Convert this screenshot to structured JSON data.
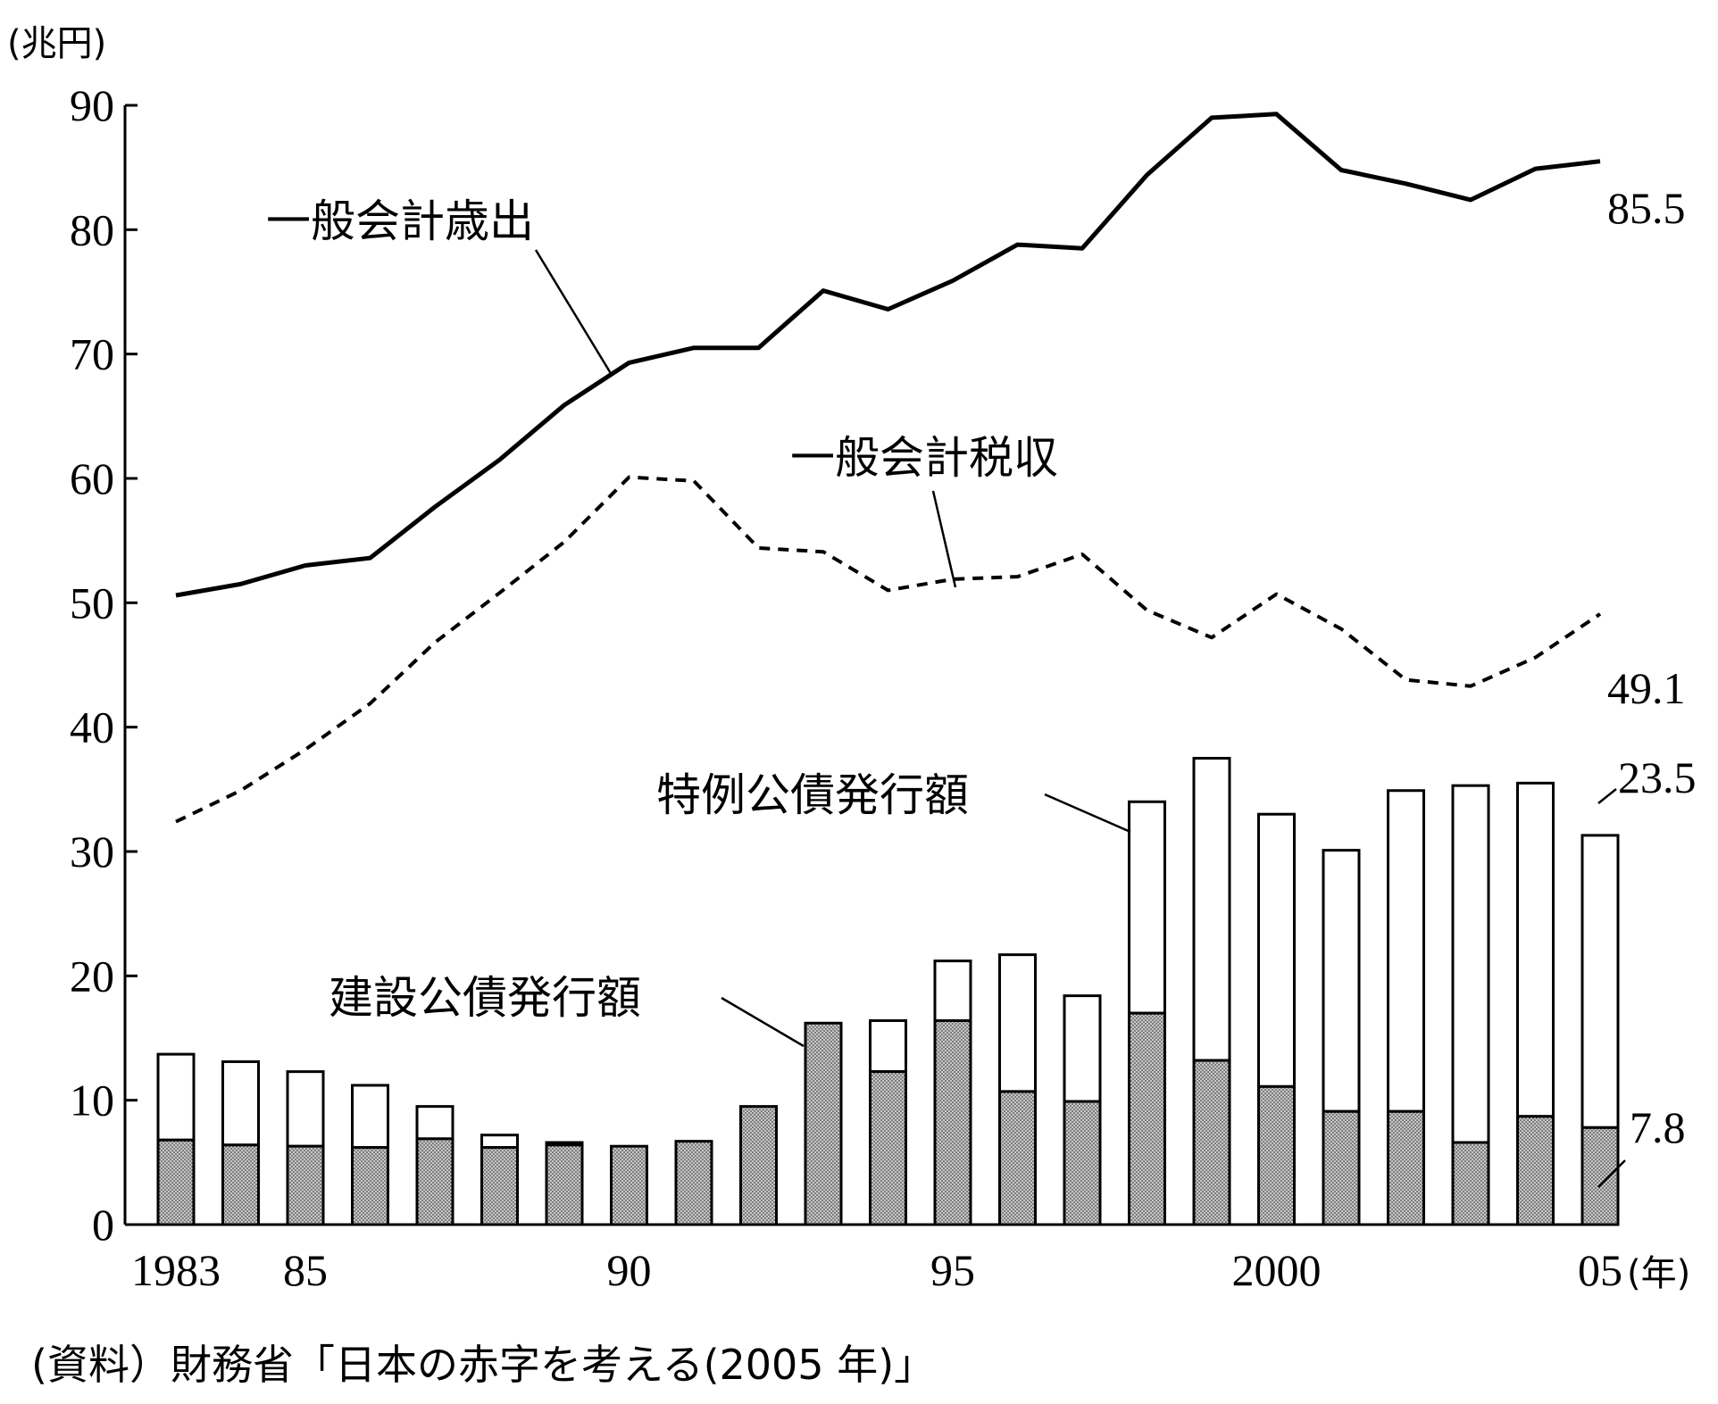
{
  "chart_data": {
    "type": "bar+line",
    "y_unit": "(兆円)",
    "x_unit": "(年)",
    "ylim": [
      0,
      90
    ],
    "yticks": [
      "0",
      "10",
      "20",
      "30",
      "40",
      "50",
      "60",
      "70",
      "80",
      "90"
    ],
    "x": [
      1983,
      1984,
      1985,
      1986,
      1987,
      1988,
      1989,
      1990,
      1991,
      1992,
      1993,
      1994,
      1995,
      1996,
      1997,
      1998,
      1999,
      2000,
      2001,
      2002,
      2003,
      2004,
      2005
    ],
    "xtick_labels": [
      {
        "year": 1983,
        "label": "1983"
      },
      {
        "year": 1985,
        "label": "85"
      },
      {
        "year": 1990,
        "label": "90"
      },
      {
        "year": 1995,
        "label": "95"
      },
      {
        "year": 2000,
        "label": "2000"
      },
      {
        "year": 2005,
        "label": "05"
      }
    ],
    "series": [
      {
        "name": "一般会計歳出",
        "kind": "line",
        "style": "solid",
        "values": [
          50.6,
          51.5,
          53.0,
          53.6,
          57.7,
          61.5,
          65.9,
          69.3,
          70.5,
          70.5,
          75.1,
          73.6,
          75.9,
          78.8,
          78.5,
          84.4,
          89.0,
          89.3,
          84.8,
          83.7,
          82.4,
          84.9,
          85.5
        ],
        "end_label": "85.5"
      },
      {
        "name": "一般会計税収",
        "kind": "line",
        "style": "dashed",
        "values": [
          32.4,
          34.9,
          38.2,
          41.9,
          46.8,
          50.8,
          54.9,
          60.1,
          59.8,
          54.4,
          54.1,
          51.0,
          51.9,
          52.1,
          53.9,
          49.4,
          47.2,
          50.7,
          47.9,
          43.8,
          43.3,
          45.6,
          49.1
        ],
        "end_label": "49.1"
      },
      {
        "name": "建設公債発行額",
        "kind": "bar",
        "fill": "stipple",
        "values": [
          6.8,
          6.4,
          6.3,
          6.2,
          6.9,
          6.2,
          6.4,
          6.3,
          6.7,
          9.5,
          16.2,
          12.3,
          16.4,
          10.7,
          9.9,
          17.0,
          13.2,
          11.1,
          9.1,
          9.1,
          6.6,
          8.7,
          7.8
        ],
        "end_label": "7.8"
      },
      {
        "name": "特例公債発行額",
        "kind": "bar",
        "fill": "white",
        "values": [
          6.9,
          6.7,
          6.0,
          5.0,
          2.6,
          1.0,
          0.2,
          0,
          0,
          0,
          0,
          4.1,
          4.8,
          11.0,
          8.5,
          17.0,
          24.3,
          21.9,
          21.0,
          25.8,
          28.7,
          26.8,
          23.5
        ],
        "end_label": "23.5"
      }
    ],
    "source": "(資料）財務省「日本の赤字を考える(2005 年)」"
  }
}
